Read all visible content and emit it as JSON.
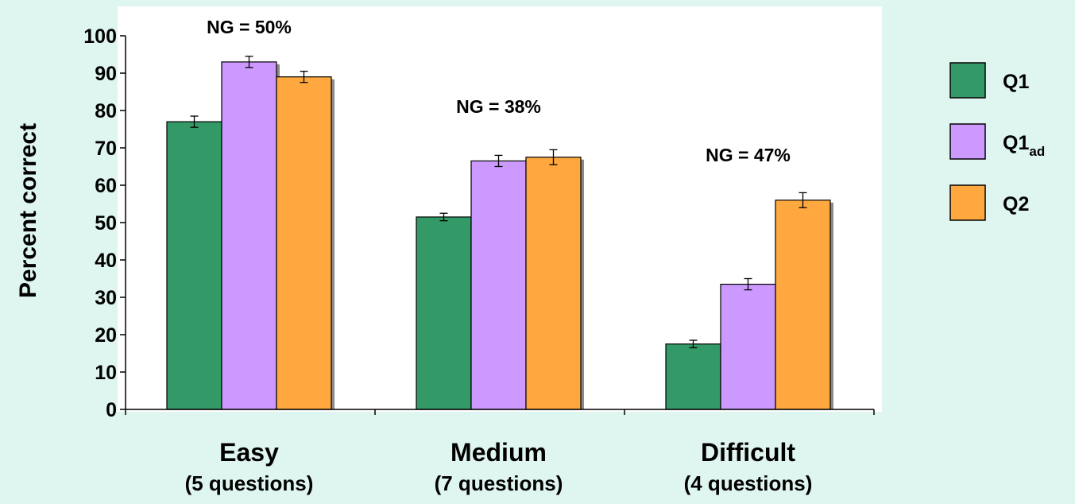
{
  "chart_data": {
    "type": "bar",
    "ylabel": "Percent correct",
    "ylim": [
      0,
      100
    ],
    "yticks": [
      0,
      10,
      20,
      30,
      40,
      50,
      60,
      70,
      80,
      90,
      100
    ],
    "categories": [
      {
        "name": "Easy",
        "detail": "(5 questions)",
        "annotation": "NG = 50%"
      },
      {
        "name": "Medium",
        "detail": "(7 questions)",
        "annotation": "NG = 38%"
      },
      {
        "name": "Difficult",
        "detail": "(4 questions)",
        "annotation": "NG = 47%"
      }
    ],
    "series": [
      {
        "name": "Q1",
        "name_sub": "",
        "color": "#339966",
        "values": [
          77,
          51.5,
          17.5
        ],
        "errors": [
          1.5,
          1,
          1
        ]
      },
      {
        "name": "Q1",
        "name_sub": "ad",
        "color": "#CC99FF",
        "values": [
          93,
          66.5,
          33.5
        ],
        "errors": [
          1.5,
          1.5,
          1.5
        ]
      },
      {
        "name": "Q2",
        "name_sub": "",
        "color": "#FFA840",
        "values": [
          89,
          67.5,
          56
        ],
        "errors": [
          1.5,
          2,
          2
        ]
      }
    ],
    "legend_position": "right",
    "grid": false
  }
}
